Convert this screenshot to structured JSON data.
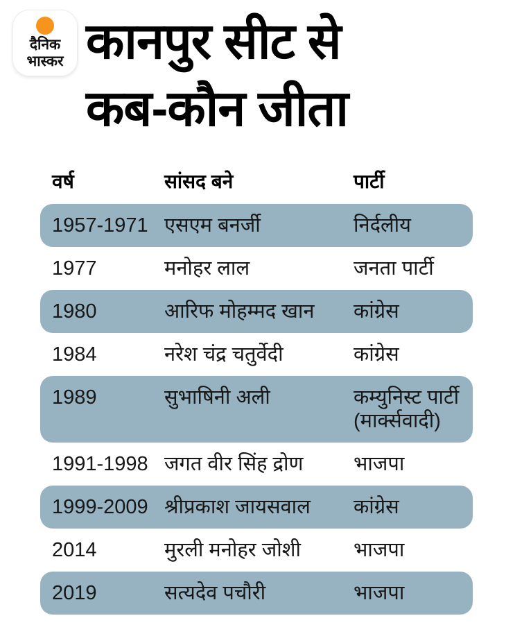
{
  "brand": {
    "logo_line1": "दैनिक",
    "logo_line2": "भास्कर",
    "logo_dot_color": "#f7941e"
  },
  "header": {
    "title_line1": "कानपुर सीट से",
    "title_line2": "कब-कौन जीता"
  },
  "table": {
    "band_color": "#97b2c0",
    "columns": [
      "वर्ष",
      "सांसद बने",
      "पार्टी"
    ]
  },
  "chart_data": {
    "type": "table",
    "title": "कानपुर सीट से कब-कौन जीता",
    "columns": [
      "वर्ष",
      "सांसद बने",
      "पार्टी"
    ],
    "rows": [
      [
        "1957-1971",
        "एसएम बनर्जी",
        "निर्दलीय"
      ],
      [
        "1977",
        "मनोहर लाल",
        "जनता पार्टी"
      ],
      [
        "1980",
        "आरिफ मोहम्मद खान",
        "कांग्रेस"
      ],
      [
        "1984",
        "नरेश चंद्र चतुर्वेदी",
        "कांग्रेस"
      ],
      [
        "1989",
        "सुभाषिनी अली",
        "कम्युनिस्ट पार्टी (मार्क्सवादी)"
      ],
      [
        "1991-1998",
        "जगत वीर सिंह द्रोण",
        "भाजपा"
      ],
      [
        "1999-2009",
        "श्रीप्रकाश जायसवाल",
        "कांग्रेस"
      ],
      [
        "2014",
        "मुरली मनोहर जोशी",
        "भाजपा"
      ],
      [
        "2019",
        "सत्यदेव पचौरी",
        "भाजपा"
      ]
    ],
    "layout": {
      "highlighted_rows": "alternate starting with first row",
      "highlight_color": "#97b2c0"
    }
  }
}
